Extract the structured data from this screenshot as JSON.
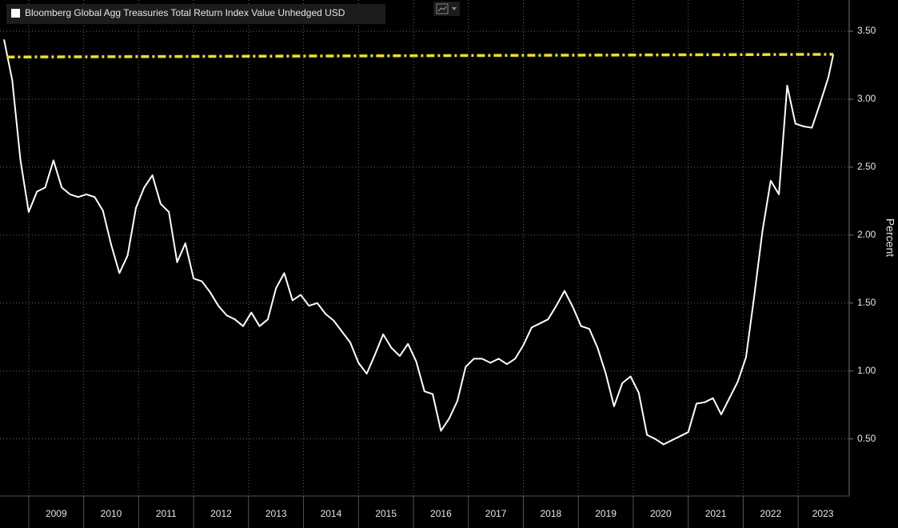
{
  "chart_data": {
    "type": "line",
    "legend": "Bloomberg Global Agg Treasuries Total Return Index Value Unhedged USD",
    "ylabel": "Percent",
    "series": [
      {
        "name": "Bloomberg Global Agg Treasuries Total Return Index Value Unhedged USD",
        "color": "#ffffff",
        "dash": false,
        "x": [
          2008.55,
          2008.7,
          2008.85,
          2009.0,
          2009.15,
          2009.3,
          2009.45,
          2009.6,
          2009.75,
          2009.9,
          2010.05,
          2010.2,
          2010.35,
          2010.5,
          2010.65,
          2010.8,
          2010.95,
          2011.1,
          2011.25,
          2011.4,
          2011.55,
          2011.7,
          2011.85,
          2012.0,
          2012.15,
          2012.3,
          2012.45,
          2012.6,
          2012.75,
          2012.9,
          2013.05,
          2013.2,
          2013.35,
          2013.5,
          2013.65,
          2013.8,
          2013.95,
          2014.1,
          2014.25,
          2014.4,
          2014.55,
          2014.7,
          2014.85,
          2015.0,
          2015.15,
          2015.3,
          2015.45,
          2015.6,
          2015.75,
          2015.9,
          2016.05,
          2016.2,
          2016.35,
          2016.5,
          2016.65,
          2016.8,
          2016.95,
          2017.1,
          2017.25,
          2017.4,
          2017.55,
          2017.7,
          2017.85,
          2018.0,
          2018.15,
          2018.3,
          2018.45,
          2018.6,
          2018.75,
          2018.9,
          2019.05,
          2019.2,
          2019.35,
          2019.5,
          2019.65,
          2019.8,
          2019.95,
          2020.1,
          2020.25,
          2020.4,
          2020.55,
          2020.7,
          2020.85,
          2021.0,
          2021.15,
          2021.3,
          2021.45,
          2021.6,
          2021.75,
          2021.9,
          2022.05,
          2022.2,
          2022.35,
          2022.5,
          2022.65,
          2022.8,
          2022.95,
          2023.1,
          2023.25,
          2023.4,
          2023.55,
          2023.64
        ],
        "values": [
          3.44,
          3.14,
          2.55,
          2.17,
          2.32,
          2.35,
          2.55,
          2.35,
          2.3,
          2.28,
          2.3,
          2.28,
          2.18,
          1.93,
          1.72,
          1.85,
          2.2,
          2.35,
          2.44,
          2.23,
          2.17,
          1.8,
          1.94,
          1.68,
          1.66,
          1.58,
          1.48,
          1.41,
          1.38,
          1.33,
          1.43,
          1.33,
          1.38,
          1.61,
          1.72,
          1.52,
          1.56,
          1.48,
          1.5,
          1.42,
          1.37,
          1.29,
          1.21,
          1.06,
          0.98,
          1.12,
          1.27,
          1.17,
          1.11,
          1.2,
          1.07,
          0.85,
          0.83,
          0.56,
          0.65,
          0.78,
          1.03,
          1.09,
          1.09,
          1.06,
          1.09,
          1.05,
          1.09,
          1.19,
          1.32,
          1.35,
          1.38,
          1.48,
          1.59,
          1.47,
          1.33,
          1.31,
          1.17,
          0.98,
          0.74,
          0.91,
          0.96,
          0.84,
          0.53,
          0.5,
          0.46,
          0.49,
          0.52,
          0.55,
          0.76,
          0.77,
          0.8,
          0.68,
          0.8,
          0.92,
          1.1,
          1.55,
          2.03,
          2.4,
          2.3,
          3.1,
          2.82,
          2.8,
          2.79,
          2.97,
          3.16,
          3.33
        ]
      },
      {
        "color": "#f5e400",
        "dash": true,
        "x": [
          2008.6,
          2023.64
        ],
        "values": [
          3.31,
          3.33
        ]
      }
    ],
    "xlim": [
      2008.55,
      2023.9
    ],
    "xticks": [
      2009,
      2010,
      2011,
      2012,
      2013,
      2014,
      2015,
      2016,
      2017,
      2018,
      2019,
      2020,
      2021,
      2022,
      2023
    ],
    "ylim": [
      0.08,
      3.73
    ],
    "yticks": [
      {
        "value": 0.5,
        "label": "0.50"
      },
      {
        "value": 1.0,
        "label": "1.00"
      },
      {
        "value": 1.5,
        "label": "1.50"
      },
      {
        "value": 2.0,
        "label": "2.00"
      },
      {
        "value": 2.5,
        "label": "2.50"
      },
      {
        "value": 3.0,
        "label": "3.00"
      },
      {
        "value": 3.5,
        "label": "3.50"
      }
    ],
    "grid": true
  }
}
